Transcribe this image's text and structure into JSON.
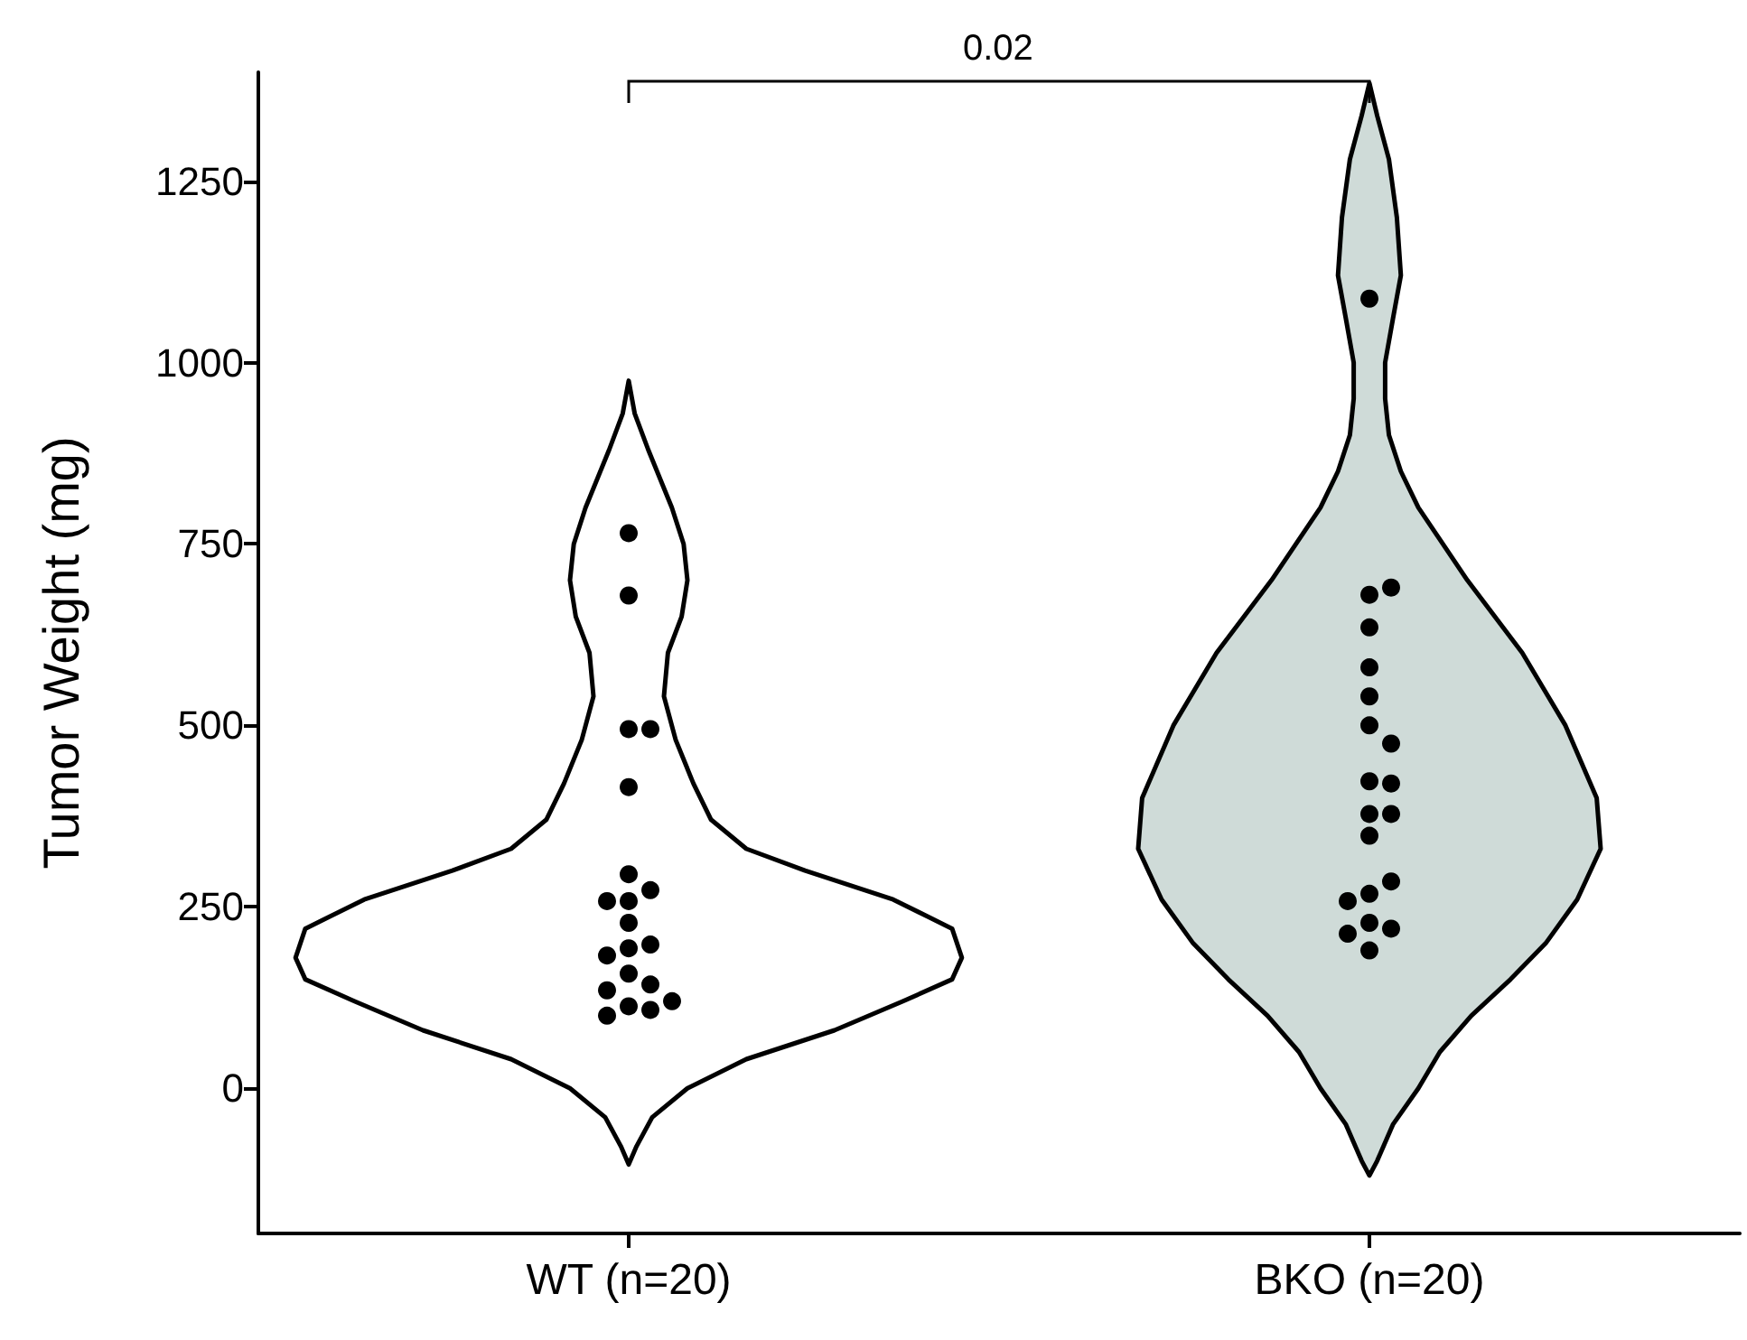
{
  "chart_data": {
    "type": "scatter",
    "ylabel": "Tumor Weight (mg)",
    "categories": [
      "WT (n=20)",
      "BKO (n=20)"
    ],
    "series": [
      {
        "color": "#000000",
        "x": [
          "WT (n=20)",
          "WT (n=20)",
          "WT (n=20)",
          "WT (n=20)",
          "WT (n=20)",
          "WT (n=20)",
          "WT (n=20)",
          "WT (n=20)",
          "WT (n=20)",
          "WT (n=20)",
          "WT (n=20)",
          "WT (n=20)",
          "WT (n=20)",
          "WT (n=20)",
          "WT (n=20)",
          "WT (n=20)",
          "WT (n=20)",
          "WT (n=20)",
          "WT (n=20)",
          "WT (n=20)",
          "BKO (n=20)",
          "BKO (n=20)",
          "BKO (n=20)",
          "BKO (n=20)",
          "BKO (n=20)",
          "BKO (n=20)",
          "BKO (n=20)",
          "BKO (n=20)",
          "BKO (n=20)",
          "BKO (n=20)",
          "BKO (n=20)",
          "BKO (n=20)",
          "BKO (n=20)",
          "BKO (n=20)",
          "BKO (n=20)",
          "BKO (n=20)",
          "BKO (n=20)",
          "BKO (n=20)",
          "BKO (n=20)",
          "BKO (n=20)"
        ],
        "values": [
          679,
          765,
          495,
          495,
          415,
          295,
          273,
          258,
          258,
          228,
          193,
          198,
          183,
          158,
          143,
          135,
          113,
          120,
          108,
          100,
          1088,
          680,
          690,
          635,
          580,
          540,
          500,
          475,
          423,
          420,
          378,
          378,
          348,
          268,
          285,
          258,
          228,
          220,
          213,
          190
        ]
      }
    ],
    "ylim": [
      -200,
      1400
    ],
    "yticks": [
      0,
      250,
      500,
      750,
      1000,
      1250
    ],
    "marker": "circle",
    "annotations": [
      "0.02"
    ]
  }
}
